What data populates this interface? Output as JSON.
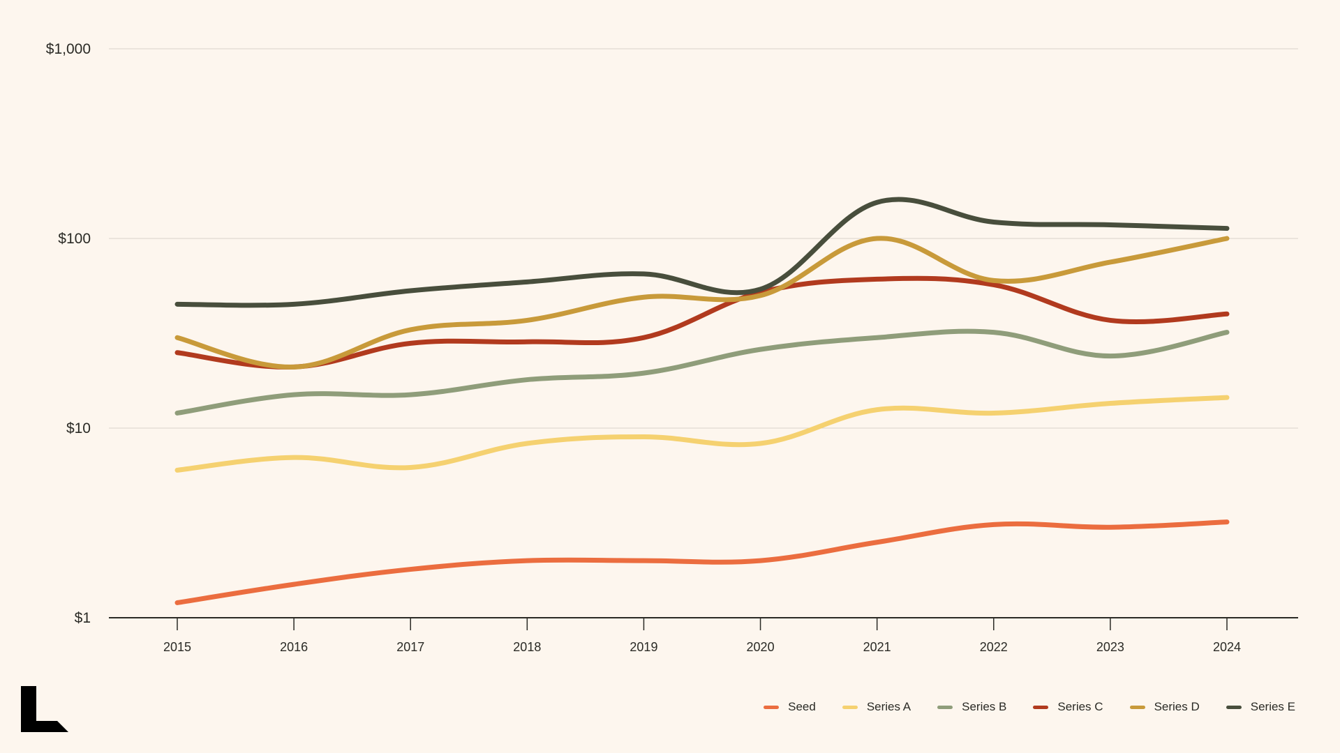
{
  "chart_data": {
    "type": "line",
    "title": "",
    "xlabel": "",
    "ylabel": "",
    "y_scale": "log",
    "ylim": [
      1,
      1000
    ],
    "y_ticks": [
      {
        "value": 1,
        "label": "$1"
      },
      {
        "value": 10,
        "label": "$10"
      },
      {
        "value": 100,
        "label": "$100"
      },
      {
        "value": 1000,
        "label": "$1,000"
      }
    ],
    "x": [
      "2015",
      "2016",
      "2017",
      "2018",
      "2019",
      "2020",
      "2021",
      "2022",
      "2023",
      "2024"
    ],
    "grid": "horizontal",
    "legend_position": "bottom-right",
    "series": [
      {
        "name": "Seed",
        "color": "#EB6D3F",
        "values": [
          1.2,
          1.5,
          1.8,
          2.0,
          2.0,
          2.0,
          2.5,
          3.1,
          3.0,
          3.2
        ]
      },
      {
        "name": "Series A",
        "color": "#F5D170",
        "values": [
          6.0,
          7.0,
          6.2,
          8.3,
          9.0,
          8.3,
          12.5,
          12.0,
          13.5,
          14.5
        ]
      },
      {
        "name": "Series B",
        "color": "#8F9D7A",
        "values": [
          12,
          15,
          15,
          18,
          19.5,
          26,
          30,
          32,
          24,
          32
        ]
      },
      {
        "name": "Series C",
        "color": "#B13A1E",
        "values": [
          25,
          21,
          28,
          28.5,
          30,
          52,
          61,
          57,
          37,
          40
        ]
      },
      {
        "name": "Series D",
        "color": "#C89A3A",
        "values": [
          30,
          21,
          33,
          37,
          49,
          50,
          100,
          60,
          75,
          100
        ]
      },
      {
        "name": "Series E",
        "color": "#484E3C",
        "values": [
          45,
          45,
          53,
          59,
          65,
          54,
          155,
          122,
          118,
          113
        ]
      }
    ]
  },
  "brand": {
    "logo_icon": "brand-logo-icon",
    "logo_color": "#000000"
  },
  "colors": {
    "background": "#FDF6EE",
    "grid": "#D9D3CB",
    "axis": "#2A2A25"
  }
}
